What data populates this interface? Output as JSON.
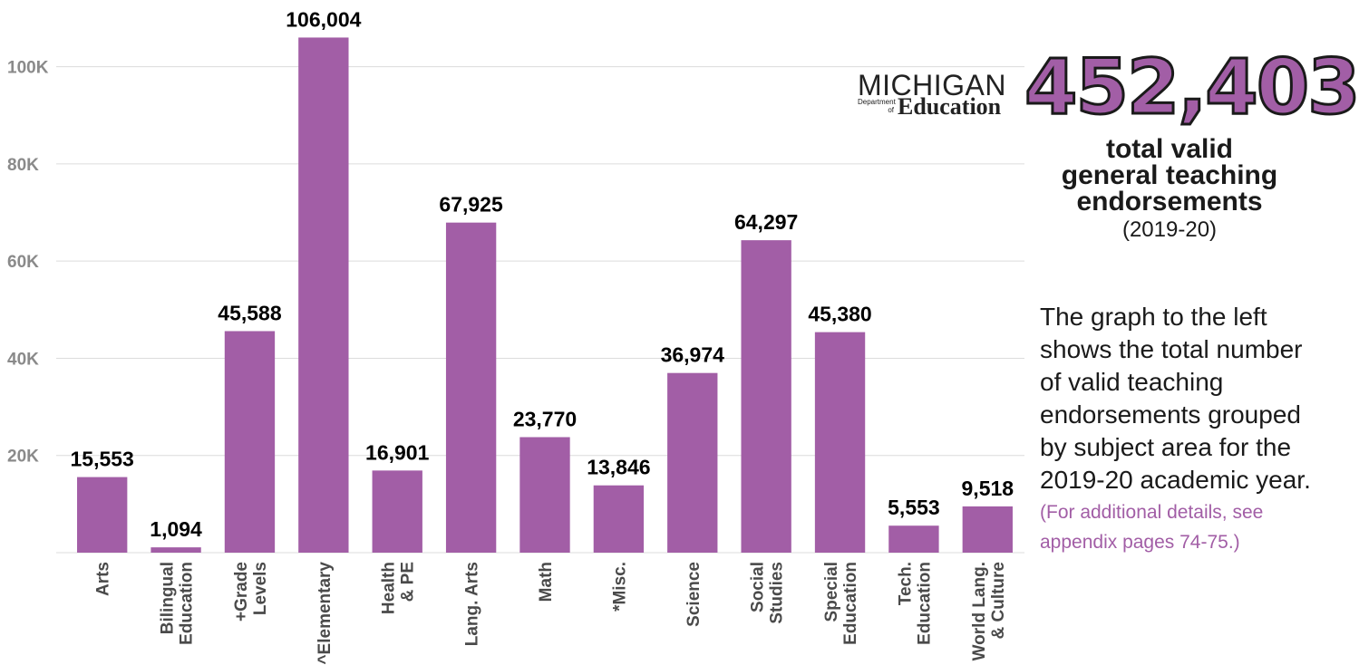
{
  "chart_data": {
    "type": "bar",
    "categories": [
      [
        "Arts"
      ],
      [
        "Bilingual",
        "Education"
      ],
      [
        "+Grade",
        "Levels"
      ],
      [
        "^Elementary"
      ],
      [
        "Health",
        "& PE"
      ],
      [
        "Lang. Arts"
      ],
      [
        "Math"
      ],
      [
        "*Misc."
      ],
      [
        "Science"
      ],
      [
        "Social",
        "Studies"
      ],
      [
        "Special",
        "Education"
      ],
      [
        "Tech.",
        "Education"
      ],
      [
        "World Lang.",
        "& Culture"
      ]
    ],
    "values": [
      15553,
      1094,
      45588,
      106004,
      16901,
      67925,
      23770,
      13846,
      36974,
      64297,
      45380,
      5553,
      9518
    ],
    "value_labels": [
      "15,553",
      "1,094",
      "45,588",
      "106,004",
      "16,901",
      "67,925",
      "23,770",
      "13,846",
      "36,974",
      "64,297",
      "45,380",
      "5,553",
      "9,518"
    ],
    "yticks": [
      {
        "value": 20000,
        "label": "20K"
      },
      {
        "value": 40000,
        "label": "40K"
      },
      {
        "value": 60000,
        "label": "60K"
      },
      {
        "value": 80000,
        "label": "80K"
      },
      {
        "value": 100000,
        "label": "100K"
      }
    ],
    "ylim": [
      0,
      110000
    ],
    "grid": true,
    "bar_color": "#a25ea6",
    "grid_color": "#dcdcdc"
  },
  "logo": {
    "name": "MICHIGAN",
    "department": [
      "Department",
      "of"
    ],
    "subtitle": "Education"
  },
  "summary": {
    "total": "452,403",
    "label_lines": [
      "total valid",
      "general teaching",
      "endorsements"
    ],
    "year": "(2019-20)",
    "description": "The graph to the left shows the total number of valid teaching endorsements grouped by subject area for the 2019-20 academic year.",
    "note": "(For additional details, see appendix pages 74-75.)"
  },
  "colors": {
    "accent": "#a25ea6",
    "text": "#1a1a1a",
    "axis_text": "#8a8a8a"
  }
}
